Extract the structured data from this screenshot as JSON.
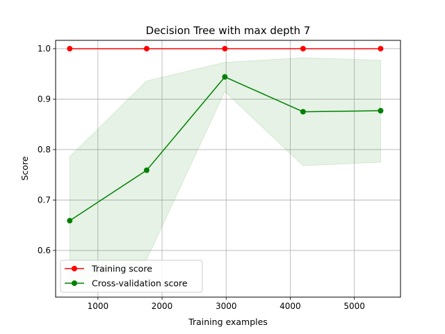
{
  "chart_data": {
    "type": "line",
    "title": "Decision Tree with max depth 7",
    "xlabel": "Training examples",
    "ylabel": "Score",
    "xlim": [
      340,
      5720
    ],
    "ylim": [
      0.5075,
      1.0165
    ],
    "xticks": [
      1000,
      2000,
      3000,
      4000,
      5000
    ],
    "yticks": [
      0.6,
      0.7,
      0.8,
      0.9,
      1.0
    ],
    "xtick_labels": [
      "1000",
      "2000",
      "3000",
      "4000",
      "5000"
    ],
    "ytick_labels": [
      "0.6",
      "0.7",
      "0.8",
      "0.9",
      "1.0"
    ],
    "grid": true,
    "legend_position": "lower-left",
    "x": [
      560,
      1760,
      2980,
      4200,
      5410
    ],
    "series": [
      {
        "name": "Training score",
        "color": "#ff0000",
        "values": [
          1.0,
          1.0,
          1.0,
          1.0,
          1.0
        ],
        "band_low": [
          1.0,
          1.0,
          1.0,
          1.0,
          1.0
        ],
        "band_high": [
          1.0,
          1.0,
          1.0,
          1.0,
          1.0
        ]
      },
      {
        "name": "Cross-validation score",
        "color": "#008000",
        "band_color": "#008000",
        "band_opacity": 0.1,
        "values": [
          0.659,
          0.759,
          0.944,
          0.875,
          0.877
        ],
        "band_low": [
          0.532,
          0.582,
          0.915,
          0.768,
          0.775
        ],
        "band_high": [
          0.786,
          0.936,
          0.973,
          0.982,
          0.977
        ]
      }
    ]
  }
}
